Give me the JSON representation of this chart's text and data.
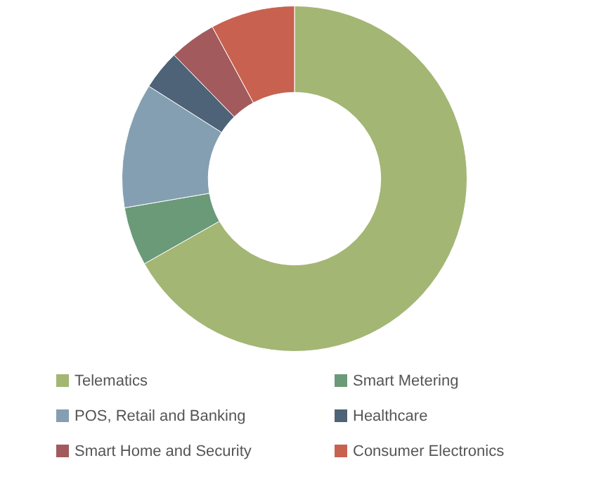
{
  "chart_data": {
    "type": "donut",
    "categories": [
      "Telematics",
      "Smart Metering",
      "POS, Retail and Banking",
      "Healthcare",
      "Smart Home and Security",
      "Consumer Electronics"
    ],
    "values": [
      66.8,
      5.5,
      11.7,
      3.7,
      4.4,
      7.9
    ],
    "colors": [
      "#a3b674",
      "#6a9a78",
      "#849fb1",
      "#4e6378",
      "#a25a5d",
      "#c8614f"
    ],
    "legend": "bottom"
  }
}
